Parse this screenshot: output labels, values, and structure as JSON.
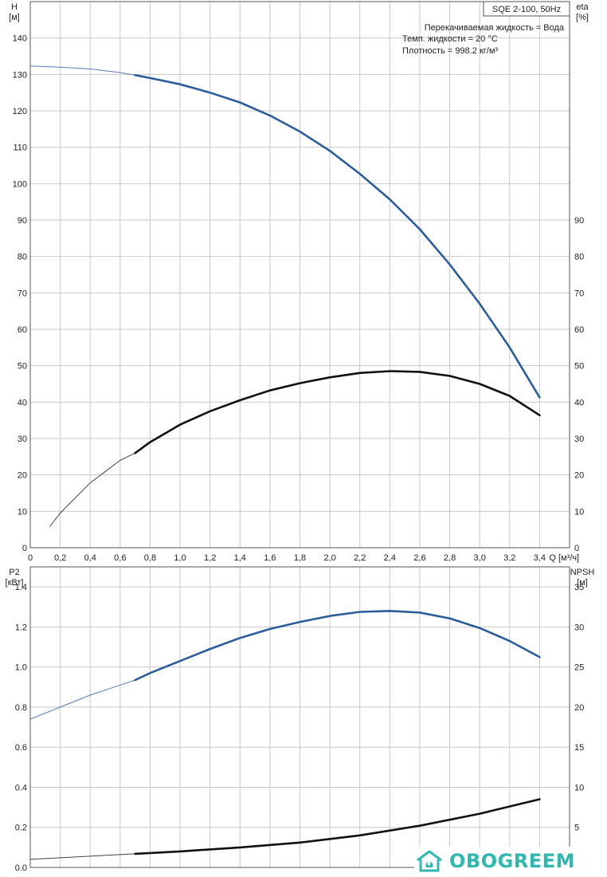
{
  "model_label": "SQE 2-100, 50Hz",
  "info_lines": [
    "Перекачиваемая жидкость = Вода",
    "Темп. жидкости = 20 °C",
    "Плотность = 998.2 кг/м³"
  ],
  "watermark_text": "OBOGREEM",
  "colors": {
    "head": "#2b5c9c",
    "eta": "#111111",
    "p2": "#2b5c9c",
    "npsh": "#111111",
    "watermark": "#2fb8b0"
  },
  "chart_data": [
    {
      "type": "line",
      "x_axis": {
        "ticks": [
          "0",
          "0,2",
          "0,4",
          "0,6",
          "0,8",
          "1,0",
          "1,2",
          "1,4",
          "1,6",
          "1,8",
          "2,0",
          "2,2",
          "2,4",
          "2,6",
          "2,8",
          "3,0",
          "3,2",
          "3,4"
        ],
        "label": "Q [м³/ч]",
        "range": [
          0,
          3.6
        ]
      },
      "y_left": {
        "label_top": "H",
        "label_unit": "[м]",
        "ticks": [
          "0",
          "10",
          "20",
          "30",
          "40",
          "50",
          "60",
          "70",
          "80",
          "90",
          "100",
          "110",
          "120",
          "130",
          "140"
        ],
        "range": [
          0,
          150
        ]
      },
      "y_right": {
        "label_top": "eta",
        "label_unit": "[%]",
        "ticks": [
          "0",
          "10",
          "20",
          "30",
          "40",
          "50",
          "60",
          "70",
          "80",
          "90"
        ],
        "range": [
          0,
          150
        ]
      },
      "grid": true,
      "series": [
        {
          "name": "H",
          "axis": "left",
          "thin_until": 0.68,
          "x": [
            0,
            0.2,
            0.4,
            0.6,
            0.7,
            0.8,
            1.0,
            1.2,
            1.4,
            1.6,
            1.8,
            2.0,
            2.2,
            2.4,
            2.6,
            2.8,
            3.0,
            3.2,
            3.4
          ],
          "y": [
            132.3,
            132.0,
            131.5,
            130.5,
            129.8,
            129.0,
            127.3,
            125.0,
            122.3,
            118.7,
            114.3,
            109.0,
            102.7,
            95.7,
            87.5,
            77.8,
            67.0,
            55.0,
            41.3
          ]
        },
        {
          "name": "eta",
          "axis": "right",
          "thin_until": 0.68,
          "x": [
            0.13,
            0.2,
            0.4,
            0.6,
            0.7,
            0.8,
            1.0,
            1.2,
            1.4,
            1.6,
            1.8,
            2.0,
            2.2,
            2.4,
            2.6,
            2.8,
            3.0,
            3.2,
            3.4
          ],
          "y": [
            5.8,
            9.5,
            17.8,
            24.0,
            26.0,
            29.0,
            33.8,
            37.5,
            40.5,
            43.2,
            45.2,
            46.8,
            48.0,
            48.5,
            48.3,
            47.2,
            45.0,
            41.7,
            36.4
          ]
        }
      ]
    },
    {
      "type": "line",
      "x_axis": {
        "ticks": [],
        "range": [
          0,
          3.6
        ]
      },
      "y_left": {
        "label_top": "P2",
        "label_unit": "[кВт]",
        "ticks": [
          "0.0",
          "0.2",
          "0.4",
          "0.6",
          "0.8",
          "1.0",
          "1.2",
          "1.4"
        ],
        "range": [
          0,
          1.5
        ]
      },
      "y_right": {
        "label_top": "NPSH",
        "label_unit": "[м]",
        "ticks": [
          "5",
          "10",
          "15",
          "20",
          "25",
          "30",
          "35"
        ],
        "range": [
          0,
          37.5
        ]
      },
      "grid": true,
      "series": [
        {
          "name": "P2",
          "axis": "left",
          "thin_until": 0.68,
          "x": [
            0,
            0.2,
            0.4,
            0.6,
            0.7,
            0.8,
            1.0,
            1.2,
            1.4,
            1.6,
            1.8,
            2.0,
            2.2,
            2.4,
            2.6,
            2.8,
            3.0,
            3.2,
            3.4
          ],
          "y": [
            0.74,
            0.8,
            0.86,
            0.91,
            0.935,
            0.97,
            1.03,
            1.09,
            1.145,
            1.19,
            1.225,
            1.255,
            1.275,
            1.28,
            1.272,
            1.243,
            1.195,
            1.13,
            1.05
          ]
        },
        {
          "name": "NPSH",
          "axis": "right",
          "thin_until": 0.68,
          "x": [
            0,
            0.4,
            0.7,
            1.0,
            1.4,
            1.8,
            2.2,
            2.6,
            3.0,
            3.4
          ],
          "y": [
            1.0,
            1.4,
            1.7,
            2.0,
            2.5,
            3.1,
            4.0,
            5.2,
            6.7,
            8.5
          ]
        }
      ]
    }
  ]
}
